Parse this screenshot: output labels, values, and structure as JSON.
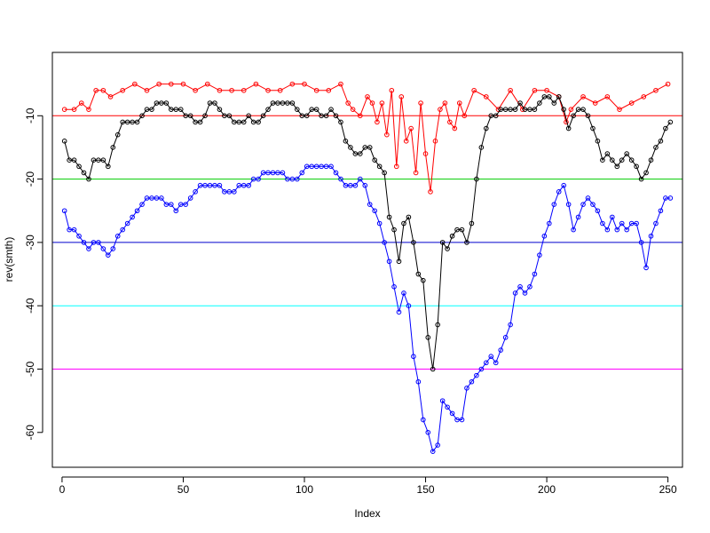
{
  "chart_data": {
    "type": "line",
    "title": "",
    "xlabel": "Index",
    "ylabel": "rev(smth)",
    "xlim": [
      -4,
      256
    ],
    "ylim": [
      -65.5,
      0
    ],
    "x_ticks": [
      0,
      50,
      100,
      150,
      200,
      250
    ],
    "x_tick_labels": [
      "0",
      "50",
      "100",
      "150",
      "200",
      "250"
    ],
    "y_ticks": [
      -10,
      -20,
      -30,
      -40,
      -50,
      -60
    ],
    "y_tick_labels": [
      "-10",
      "-20",
      "-30",
      "-40",
      "-50",
      "-60"
    ],
    "grid": false,
    "marker": "open-circle",
    "hlines": [
      {
        "y": -10,
        "color": "#ff0000"
      },
      {
        "y": -20,
        "color": "#00cd00"
      },
      {
        "y": -30,
        "color": "#0000cd"
      },
      {
        "y": -40,
        "color": "#00ffff"
      },
      {
        "y": -50,
        "color": "#ff00ff"
      }
    ],
    "series": [
      {
        "color": "#ff0000",
        "x": [
          1,
          5,
          8,
          11,
          14,
          17,
          20,
          25,
          30,
          35,
          40,
          45,
          50,
          55,
          60,
          65,
          70,
          75,
          80,
          85,
          90,
          95,
          100,
          105,
          110,
          115,
          118,
          120,
          123,
          126,
          128,
          130,
          132,
          134,
          136,
          138,
          140,
          142,
          144,
          146,
          148,
          150,
          152,
          154,
          156,
          158,
          160,
          162,
          164,
          166,
          170,
          175,
          180,
          185,
          190,
          195,
          200,
          205,
          208,
          210,
          215,
          220,
          225,
          230,
          235,
          240,
          245,
          250
        ],
        "values": [
          -9,
          -9,
          -8,
          -9,
          -6,
          -6,
          -7,
          -6,
          -5,
          -6,
          -5,
          -5,
          -5,
          -6,
          -5,
          -6,
          -6,
          -6,
          -5,
          -6,
          -6,
          -5,
          -5,
          -6,
          -6,
          -5,
          -8,
          -9,
          -10,
          -7,
          -8,
          -11,
          -8,
          -13,
          -6,
          -18,
          -7,
          -14,
          -12,
          -19,
          -8,
          -16,
          -22,
          -14,
          -9,
          -8,
          -11,
          -12,
          -8,
          -10,
          -6,
          -7,
          -9,
          -6,
          -9,
          -6,
          -6,
          -7,
          -11,
          -9,
          -7,
          -8,
          -7,
          -9,
          -8,
          -7,
          -6,
          -5
        ]
      },
      {
        "color": "#000000",
        "x": [
          1,
          3,
          5,
          7,
          9,
          11,
          13,
          15,
          17,
          19,
          21,
          23,
          25,
          27,
          29,
          31,
          33,
          35,
          37,
          39,
          41,
          43,
          45,
          47,
          49,
          51,
          53,
          55,
          57,
          59,
          61,
          63,
          65,
          67,
          69,
          71,
          73,
          75,
          77,
          79,
          81,
          83,
          85,
          87,
          89,
          91,
          93,
          95,
          97,
          99,
          101,
          103,
          105,
          107,
          109,
          111,
          113,
          115,
          117,
          119,
          121,
          123,
          125,
          127,
          129,
          131,
          133,
          135,
          137,
          139,
          141,
          143,
          145,
          147,
          149,
          151,
          153,
          155,
          157,
          159,
          161,
          163,
          165,
          167,
          169,
          171,
          173,
          175,
          177,
          179,
          181,
          183,
          185,
          187,
          189,
          191,
          193,
          195,
          197,
          199,
          201,
          203,
          205,
          207,
          209,
          211,
          213,
          215,
          217,
          219,
          221,
          223,
          225,
          227,
          229,
          231,
          233,
          235,
          237,
          239,
          241,
          243,
          245,
          247,
          249,
          251
        ],
        "values": [
          -14,
          -17,
          -17,
          -18,
          -19,
          -20,
          -17,
          -17,
          -17,
          -18,
          -15,
          -13,
          -11,
          -11,
          -11,
          -11,
          -10,
          -9,
          -9,
          -8,
          -8,
          -8,
          -9,
          -9,
          -9,
          -10,
          -10,
          -11,
          -11,
          -10,
          -8,
          -8,
          -9,
          -10,
          -10,
          -11,
          -11,
          -11,
          -10,
          -11,
          -11,
          -10,
          -9,
          -8,
          -8,
          -8,
          -8,
          -8,
          -9,
          -10,
          -10,
          -9,
          -9,
          -10,
          -10,
          -9,
          -10,
          -11,
          -14,
          -15,
          -16,
          -16,
          -15,
          -15,
          -17,
          -18,
          -19,
          -26,
          -28,
          -33,
          -27,
          -26,
          -30,
          -35,
          -36,
          -45,
          -50,
          -43,
          -30,
          -31,
          -29,
          -28,
          -28,
          -30,
          -27,
          -20,
          -15,
          -12,
          -10,
          -10,
          -9,
          -9,
          -9,
          -9,
          -8,
          -9,
          -9,
          -9,
          -8,
          -7,
          -7,
          -8,
          -7,
          -9,
          -12,
          -10,
          -9,
          -9,
          -10,
          -12,
          -14,
          -17,
          -16,
          -17,
          -18,
          -17,
          -16,
          -17,
          -18,
          -20,
          -19,
          -17,
          -15,
          -14,
          -12,
          -11
        ]
      },
      {
        "color": "#0000ff",
        "x": [
          1,
          3,
          5,
          7,
          9,
          11,
          13,
          15,
          17,
          19,
          21,
          23,
          25,
          27,
          29,
          31,
          33,
          35,
          37,
          39,
          41,
          43,
          45,
          47,
          49,
          51,
          53,
          55,
          57,
          59,
          61,
          63,
          65,
          67,
          69,
          71,
          73,
          75,
          77,
          79,
          81,
          83,
          85,
          87,
          89,
          91,
          93,
          95,
          97,
          99,
          101,
          103,
          105,
          107,
          109,
          111,
          113,
          115,
          117,
          119,
          121,
          123,
          125,
          127,
          129,
          131,
          133,
          135,
          137,
          139,
          141,
          143,
          145,
          147,
          149,
          151,
          153,
          155,
          157,
          159,
          161,
          163,
          165,
          167,
          169,
          171,
          173,
          175,
          177,
          179,
          181,
          183,
          185,
          187,
          189,
          191,
          193,
          195,
          197,
          199,
          201,
          203,
          205,
          207,
          209,
          211,
          213,
          215,
          217,
          219,
          221,
          223,
          225,
          227,
          229,
          231,
          233,
          235,
          237,
          239,
          241,
          243,
          245,
          247,
          249,
          251
        ],
        "values": [
          -25,
          -28,
          -28,
          -29,
          -30,
          -31,
          -30,
          -30,
          -31,
          -32,
          -31,
          -29,
          -28,
          -27,
          -26,
          -25,
          -24,
          -23,
          -23,
          -23,
          -23,
          -24,
          -24,
          -25,
          -24,
          -24,
          -23,
          -22,
          -21,
          -21,
          -21,
          -21,
          -21,
          -22,
          -22,
          -22,
          -21,
          -21,
          -21,
          -20,
          -20,
          -19,
          -19,
          -19,
          -19,
          -19,
          -20,
          -20,
          -20,
          -19,
          -18,
          -18,
          -18,
          -18,
          -18,
          -18,
          -19,
          -20,
          -21,
          -21,
          -21,
          -20,
          -21,
          -24,
          -25,
          -27,
          -30,
          -33,
          -37,
          -41,
          -38,
          -40,
          -48,
          -52,
          -58,
          -60,
          -63,
          -62,
          -55,
          -56,
          -57,
          -58,
          -58,
          -53,
          -52,
          -51,
          -50,
          -49,
          -48,
          -49,
          -47,
          -45,
          -43,
          -38,
          -37,
          -38,
          -37,
          -35,
          -32,
          -29,
          -27,
          -24,
          -22,
          -21,
          -24,
          -28,
          -26,
          -24,
          -23,
          -24,
          -25,
          -27,
          -28,
          -26,
          -28,
          -27,
          -28,
          -27,
          -27,
          -30,
          -34,
          -29,
          -27,
          -25,
          -23,
          -23
        ]
      }
    ]
  }
}
